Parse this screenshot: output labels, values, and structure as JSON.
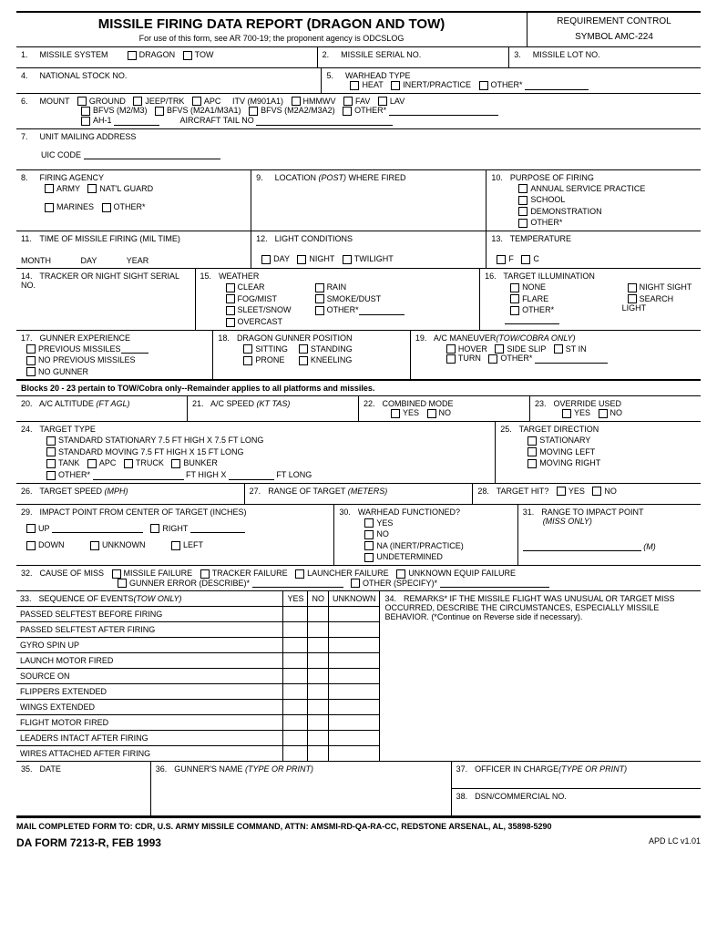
{
  "header": {
    "title": "MISSILE FIRING DATA REPORT (DRAGON AND TOW)",
    "subtitle": "For use of this form, see AR 700-19; the proponent agency is ODCSLOG",
    "req_control": "REQUIREMENT CONTROL",
    "symbol": "SYMBOL AMC-224"
  },
  "f1": {
    "num": "1.",
    "label": "MISSILE SYSTEM",
    "opt1": "DRAGON",
    "opt2": "TOW"
  },
  "f2": {
    "num": "2.",
    "label": "MISSILE SERIAL NO."
  },
  "f3": {
    "num": "3.",
    "label": "MISSILE LOT NO."
  },
  "f4": {
    "num": "4.",
    "label": "NATIONAL STOCK NO."
  },
  "f5": {
    "num": "5.",
    "label": "WARHEAD TYPE",
    "o1": "HEAT",
    "o2": "INERT/PRACTICE",
    "o3": "OTHER*"
  },
  "f6": {
    "num": "6.",
    "label": "MOUNT",
    "r1": [
      "GROUND",
      "JEEP/TRK",
      "APC",
      "ITV (M901A1)",
      "HMMWV",
      "FAV",
      "LAV"
    ],
    "r2": [
      "BFVS (M2/M3)",
      "BFVS (M2A1/M3A1)",
      "BFVS (M2A2/M3A2)",
      "OTHER*"
    ],
    "r3a": "AH-1",
    "r3b": "AIRCRAFT TAIL NO"
  },
  "f7": {
    "num": "7.",
    "label": "UNIT MAILING ADDRESS",
    "uic": "UIC CODE"
  },
  "f8": {
    "num": "8.",
    "label": "FIRING AGENCY",
    "o": [
      "ARMY",
      "NAT'L GUARD",
      "MARINES",
      "OTHER*"
    ]
  },
  "f9": {
    "num": "9.",
    "label": "LOCATION",
    "it": "(POST)",
    "label2": "WHERE FIRED"
  },
  "f10": {
    "num": "10.",
    "label": "PURPOSE OF FIRING",
    "o": [
      "ANNUAL SERVICE PRACTICE",
      "SCHOOL",
      "DEMONSTRATION",
      "OTHER*"
    ]
  },
  "f11": {
    "num": "11.",
    "label": "TIME OF MISSILE FIRING (MIL TIME)",
    "m": "MONTH",
    "d": "DAY",
    "y": "YEAR"
  },
  "f12": {
    "num": "12.",
    "label": "LIGHT CONDITIONS",
    "o": [
      "DAY",
      "NIGHT",
      "TWILIGHT"
    ]
  },
  "f13": {
    "num": "13.",
    "label": "TEMPERATURE",
    "f": "F",
    "c": "C"
  },
  "f14": {
    "num": "14.",
    "label": "TRACKER OR NIGHT SIGHT SERIAL NO."
  },
  "f15": {
    "num": "15.",
    "label": "WEATHER",
    "c1": [
      "CLEAR",
      "FOG/MIST",
      "SLEET/SNOW",
      "OVERCAST"
    ],
    "c2": [
      "RAIN",
      "SMOKE/DUST",
      "OTHER*"
    ]
  },
  "f16": {
    "num": "16.",
    "label": "TARGET ILLUMINATION",
    "c1": [
      "NONE",
      "FLARE",
      "OTHER*"
    ],
    "c2": [
      "NIGHT SIGHT",
      "SEARCH LIGHT"
    ]
  },
  "f17": {
    "num": "17.",
    "label": "GUNNER EXPERIENCE",
    "o": [
      "PREVIOUS MISSILES",
      "NO PREVIOUS MISSILES",
      "NO GUNNER"
    ]
  },
  "f18": {
    "num": "18.",
    "label": "DRAGON GUNNER POSITION",
    "c1": [
      "SITTING",
      "PRONE"
    ],
    "c2": [
      "STANDING",
      "KNEELING"
    ]
  },
  "f19": {
    "num": "19.",
    "label": "A/C MANEUVER",
    "it": "(TOW/COBRA ONLY)",
    "r1": [
      "HOVER",
      "SIDE SLIP",
      "ST IN"
    ],
    "r2": [
      "TURN",
      "OTHER*"
    ]
  },
  "note": "Blocks 20 - 23 pertain to TOW/Cobra only--Remainder applies to all platforms and missiles.",
  "f20": {
    "num": "20.",
    "label": "A/C ALTITUDE",
    "it": "(FT AGL)"
  },
  "f21": {
    "num": "21.",
    "label": "A/C SPEED",
    "it": "(KT TAS)"
  },
  "f22": {
    "num": "22.",
    "label": "COMBINED MODE",
    "y": "YES",
    "n": "NO"
  },
  "f23": {
    "num": "23.",
    "label": "OVERRIDE USED",
    "y": "YES",
    "n": "NO"
  },
  "f24": {
    "num": "24.",
    "label": "TARGET TYPE",
    "l1": "STANDARD STATIONARY 7.5 FT HIGH X 7.5 FT LONG",
    "l2": "STANDARD MOVING 7.5 FT HIGH X 15 FT LONG",
    "l3": [
      "TANK",
      "APC",
      "TRUCK",
      "BUNKER"
    ],
    "l4a": "OTHER*",
    "l4b": "FT HIGH X",
    "l4c": "FT LONG"
  },
  "f25": {
    "num": "25.",
    "label": "TARGET DIRECTION",
    "o": [
      "STATIONARY",
      "MOVING LEFT",
      "MOVING RIGHT"
    ]
  },
  "f26": {
    "num": "26.",
    "label": "TARGET SPEED",
    "it": "(MPH)"
  },
  "f27": {
    "num": "27.",
    "label": "RANGE OF TARGET",
    "it": "(METERS)"
  },
  "f28": {
    "num": "28.",
    "label": "TARGET HIT?",
    "y": "YES",
    "n": "NO"
  },
  "f29": {
    "num": "29.",
    "label": "IMPACT POINT FROM CENTER OF TARGET (INCHES)",
    "o": [
      "UP",
      "RIGHT",
      "DOWN",
      "UNKNOWN",
      "LEFT"
    ]
  },
  "f30": {
    "num": "30.",
    "label": "WARHEAD FUNCTIONED?",
    "o": [
      "YES",
      "NO",
      "NA (INERT/PRACTICE)",
      "UNDETERMINED"
    ]
  },
  "f31": {
    "num": "31.",
    "label": "RANGE TO IMPACT POINT",
    "it": "(MISS ONLY)",
    "m": "(M)"
  },
  "f32": {
    "num": "32.",
    "label": "CAUSE OF MISS",
    "r1": [
      "MISSILE FAILURE",
      "TRACKER FAILURE",
      "LAUNCHER FAILURE",
      "UNKNOWN EQUIP FAILURE"
    ],
    "r2a": "GUNNER ERROR (DESCRIBE)*",
    "r2b": "OTHER (SPECIFY)*"
  },
  "f33": {
    "num": "33.",
    "label": "SEQUENCE OF EVENTS",
    "it": "(TOW ONLY)",
    "h": [
      "YES",
      "NO",
      "UNKNOWN"
    ],
    "rows": [
      "PASSED SELFTEST BEFORE FIRING",
      "PASSED SELFTEST AFTER FIRING",
      "GYRO SPIN UP",
      "LAUNCH MOTOR FIRED",
      "SOURCE ON",
      "FLIPPERS EXTENDED",
      "WINGS EXTENDED",
      "FLIGHT MOTOR FIRED",
      "LEADERS INTACT AFTER FIRING",
      "WIRES ATTACHED AFTER FIRING"
    ]
  },
  "f34": {
    "num": "34.",
    "label": "REMARKS* IF THE MISSILE FLIGHT WAS UNUSUAL OR TARGET MISS OCCURRED, DESCRIBE THE CIRCUMSTANCES, ESPECIALLY MISSILE BEHAVIOR. (*Continue on Reverse side if necessary)."
  },
  "f35": {
    "num": "35.",
    "label": "DATE"
  },
  "f36": {
    "num": "36.",
    "label": "GUNNER'S NAME",
    "it": "(TYPE OR PRINT)"
  },
  "f37": {
    "num": "37.",
    "label": "OFFICER IN CHARGE",
    "it": "(TYPE OR PRINT)"
  },
  "f38": {
    "num": "38.",
    "label": "DSN/COMMERCIAL NO."
  },
  "mail": "MAIL COMPLETED FORM TO:  CDR, U.S. ARMY MISSILE COMMAND, ATTN:  AMSMI-RD-QA-RA-CC, REDSTONE ARSENAL, AL, 35898-5290",
  "formid": "DA FORM 7213-R, FEB 1993",
  "apd": "APD LC v1.01"
}
